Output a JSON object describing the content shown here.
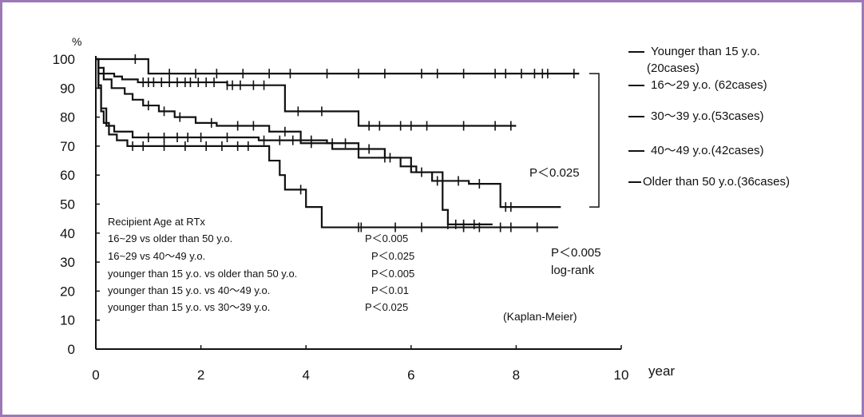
{
  "chart_data": {
    "type": "line",
    "subtype": "kaplan-meier step",
    "ylabel": "%",
    "xlabel": "year",
    "xlim": [
      0,
      10
    ],
    "ylim": [
      0,
      100
    ],
    "x_ticks": [
      "0",
      "2",
      "4",
      "6",
      "8",
      "10"
    ],
    "y_ticks": [
      "0",
      "10",
      "20",
      "30",
      "40",
      "50",
      "60",
      "70",
      "80",
      "90",
      "100"
    ],
    "grid": false,
    "line_color": "#111111",
    "series": [
      {
        "name": "Younger than 15 y.o. (20cases)",
        "x": [
          0,
          0.75,
          1.0,
          9.2
        ],
        "y": [
          100,
          100,
          95,
          95
        ],
        "censor_x": [
          0.75,
          1.4,
          1.9,
          2.3,
          2.8,
          3.3,
          3.7,
          4.4,
          5.0,
          5.5,
          6.2,
          6.5,
          7.0,
          7.6,
          7.8,
          8.1,
          8.35,
          8.5,
          8.6,
          9.1
        ]
      },
      {
        "name": "16〜29 y.o. (62cases)",
        "x": [
          0,
          0.05,
          0.15,
          0.35,
          0.5,
          0.8,
          2.4,
          2.5,
          3.4,
          3.6,
          4.9,
          5.0,
          8.0
        ],
        "y": [
          100,
          97,
          95,
          94,
          93,
          92,
          92,
          91,
          91,
          82,
          82,
          77,
          77
        ],
        "censor_x": [
          0.9,
          1.0,
          1.1,
          1.25,
          1.4,
          1.55,
          1.7,
          1.8,
          1.95,
          2.1,
          2.25,
          2.5,
          2.6,
          2.75,
          3.0,
          3.2,
          3.85,
          4.3,
          5.2,
          5.4,
          5.8,
          6.0,
          6.3,
          7.0,
          7.6,
          7.9
        ]
      },
      {
        "name": "30〜39 y.o.(53cases)",
        "x": [
          0,
          0.05,
          0.15,
          0.3,
          0.55,
          0.7,
          0.9,
          1.2,
          1.5,
          1.9,
          2.3,
          3.3,
          3.9,
          4.5,
          5.0,
          5.8,
          6.1,
          6.4,
          7.1,
          7.7,
          8.85
        ],
        "y": [
          100,
          95,
          93,
          90,
          88,
          86,
          84,
          82,
          80,
          78,
          77,
          75,
          71,
          69,
          66,
          63,
          61,
          58,
          57,
          49,
          49
        ],
        "censor_x": [
          1.0,
          1.3,
          1.6,
          2.2,
          2.7,
          3.0,
          3.6,
          4.1,
          5.5,
          6.5,
          6.9,
          7.3,
          7.8,
          7.9
        ]
      },
      {
        "name": "40〜49 y.o.(42cases)",
        "x": [
          0,
          0.05,
          0.1,
          0.2,
          0.35,
          0.7,
          2.6,
          3.1,
          4.4,
          5.0,
          5.5,
          6.0,
          6.6,
          6.7,
          7.55
        ],
        "y": [
          100,
          91,
          83,
          77,
          75,
          73,
          73,
          72,
          71,
          69,
          66,
          61,
          48,
          43,
          43
        ],
        "censor_x": [
          1.0,
          1.3,
          1.55,
          1.75,
          2.0,
          2.5,
          3.2,
          3.5,
          3.75,
          4.1,
          4.5,
          4.75,
          5.2,
          5.6,
          6.2,
          6.7,
          6.85,
          7.0,
          7.2
        ]
      },
      {
        "name": "Older than 50 y.o.(36cases)",
        "x": [
          0,
          0.05,
          0.1,
          0.15,
          0.25,
          0.4,
          0.6,
          3.1,
          3.3,
          3.5,
          3.6,
          4.0,
          4.3,
          8.8
        ],
        "y": [
          100,
          90,
          82,
          78,
          74,
          72,
          70,
          70,
          65,
          60,
          55,
          49,
          42,
          42
        ],
        "censor_x": [
          0.7,
          0.9,
          1.3,
          1.7,
          2.1,
          2.4,
          2.7,
          2.9,
          3.9,
          5.0,
          5.05,
          5.7,
          6.2,
          7.0,
          7.3,
          7.7,
          7.9,
          8.4
        ]
      }
    ],
    "legend": [
      {
        "line1": "Younger than 15 y.o.",
        "line2": "(20cases)"
      },
      {
        "line1": "16〜29 y.o. (62cases)"
      },
      {
        "line1": "30〜39 y.o.(53cases)"
      },
      {
        "line1": "40〜49 y.o.(42cases)"
      },
      {
        "line1": "Older than 50 y.o.(36cases)"
      }
    ],
    "legend_position": "right",
    "annotations": {
      "subtitle": "Recipient Age at RTx",
      "comparisons": [
        {
          "label": "16~29  vs  older than 50 y.o.",
          "p": "P＜0.005"
        },
        {
          "label": "16~29  vs  40〜49 y.o.",
          "p": "P＜0.025"
        },
        {
          "label": "younger than 15 y.o. vs  older than 50 y.o.",
          "p": "P＜0.005"
        },
        {
          "label": "younger than 15 y.o.  vs  40〜49 y.o.",
          "p": "P＜0.01"
        },
        {
          "label": "younger than 15 y.o.  vs  30〜39 y.o.",
          "p": "P＜0.025"
        }
      ],
      "bracket_p": "P＜0.025",
      "logrank_p": "P＜0.005",
      "logrank_label": "log-rank",
      "method": "(Kaplan-Meier)"
    }
  }
}
